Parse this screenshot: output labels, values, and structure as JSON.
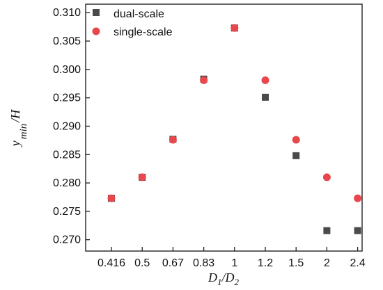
{
  "chart_data": {
    "type": "scatter",
    "categories": [
      "0.416",
      "0.5",
      "0.67",
      "0.83",
      "1",
      "1.2",
      "1.5",
      "2",
      "2.4"
    ],
    "series": [
      {
        "name": "dual-scale",
        "marker": "square",
        "color": "#4a4a4a",
        "values": [
          0.2773,
          0.281,
          0.2877,
          0.2983,
          0.3073,
          0.2951,
          0.2848,
          0.2716,
          0.2716
        ]
      },
      {
        "name": "single-scale",
        "marker": "circle",
        "color": "#e8474c",
        "values": [
          0.2773,
          0.281,
          0.2876,
          0.2981,
          0.3073,
          0.2981,
          0.2876,
          0.281,
          0.2773
        ]
      }
    ],
    "ylim": [
      0.268,
      0.3115
    ],
    "yticks": [
      "0.270",
      "0.275",
      "0.280",
      "0.285",
      "0.290",
      "0.295",
      "0.300",
      "0.305",
      "0.310"
    ],
    "ylabel": {
      "pre": "y",
      "sub": "min",
      "post": "/H"
    },
    "xlabel": {
      "a": "D",
      "a_sub": "1",
      "slash": "/",
      "b": "D",
      "b_sub": "2"
    },
    "legend_placement": "top-left",
    "grid": false
  }
}
